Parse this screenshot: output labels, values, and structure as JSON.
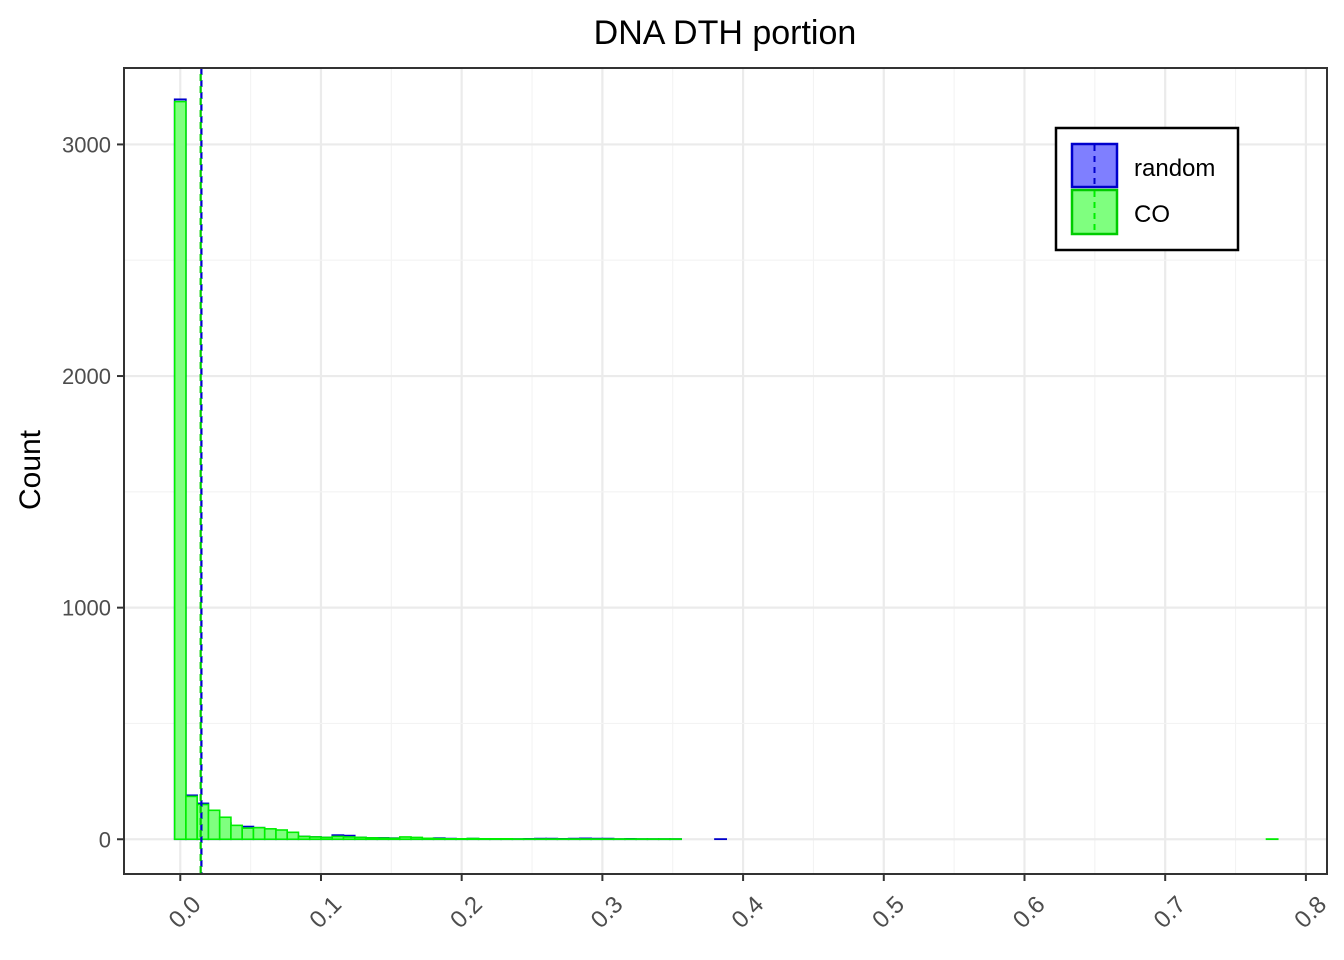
{
  "chart_data": {
    "type": "bar",
    "title": "DNA DTH portion",
    "xlabel": "",
    "ylabel": "Count",
    "xlim": [
      -0.04,
      0.815
    ],
    "ylim": [
      -150,
      3330
    ],
    "xticks": [
      0.0,
      0.1,
      0.2,
      0.3,
      0.4,
      0.5,
      0.6,
      0.7,
      0.8
    ],
    "xtick_labels": [
      "0.0",
      "0.1",
      "0.2",
      "0.3",
      "0.4",
      "0.5",
      "0.6",
      "0.7",
      "0.8"
    ],
    "yticks": [
      0,
      1000,
      2000,
      3000
    ],
    "ytick_labels": [
      "0",
      "1000",
      "2000",
      "3000"
    ],
    "bin_width": 0.008,
    "first_bin_center": 0.0,
    "grid": true,
    "legend_position": "top-right",
    "series": [
      {
        "name": "random",
        "fill": "#7f7fff",
        "stroke": "#0000cc",
        "mean": 0.015,
        "values": [
          3195,
          190,
          155,
          120,
          70,
          45,
          55,
          50,
          35,
          30,
          15,
          12,
          10,
          8,
          18,
          16,
          8,
          6,
          6,
          5,
          4,
          4,
          3,
          5,
          3,
          2,
          3,
          2,
          1,
          1,
          1,
          2,
          3,
          3,
          2,
          3,
          4,
          3,
          3,
          1,
          2,
          1,
          1,
          1,
          1,
          0,
          0,
          0,
          1,
          0,
          0,
          0,
          0,
          0,
          0,
          0,
          0,
          0,
          0,
          0,
          0,
          0,
          0,
          0,
          0,
          0,
          0,
          0,
          0,
          0,
          0,
          0,
          0,
          0,
          0,
          0,
          0,
          0,
          0,
          0,
          0,
          0,
          0,
          0,
          0,
          0,
          0,
          0,
          0,
          0,
          0,
          0,
          0,
          0,
          0,
          0,
          0,
          0
        ]
      },
      {
        "name": "CO",
        "fill": "#7fff7f",
        "stroke": "#00ee00",
        "mean": 0.0145,
        "values": [
          3185,
          185,
          150,
          125,
          95,
          60,
          48,
          50,
          45,
          40,
          30,
          12,
          10,
          8,
          12,
          10,
          8,
          6,
          5,
          4,
          10,
          8,
          4,
          3,
          2,
          2,
          3,
          2,
          2,
          2,
          1,
          1,
          1,
          1,
          1,
          1,
          1,
          1,
          1,
          1,
          1,
          1,
          1,
          1,
          1,
          0,
          0,
          0,
          0,
          0,
          0,
          0,
          0,
          0,
          0,
          0,
          0,
          0,
          0,
          0,
          0,
          0,
          0,
          0,
          0,
          0,
          0,
          0,
          0,
          0,
          0,
          0,
          0,
          0,
          0,
          0,
          0,
          0,
          0,
          0,
          0,
          0,
          0,
          0,
          0,
          0,
          0,
          0,
          0,
          0,
          0,
          0,
          0,
          0,
          0,
          0,
          0,
          1
        ]
      }
    ]
  }
}
